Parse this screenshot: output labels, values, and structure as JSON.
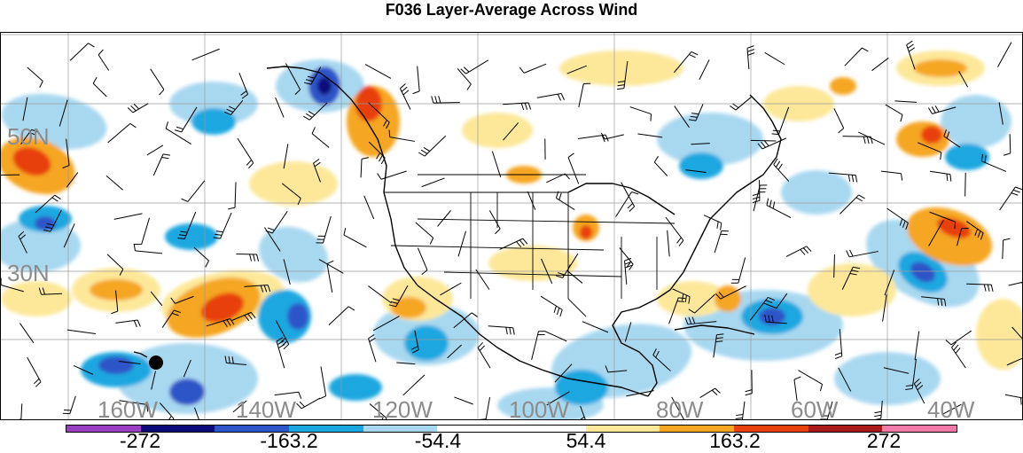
{
  "title": "F036 Layer-Average Across Wind",
  "map": {
    "latitude_labels": [
      "50N",
      "30N"
    ],
    "longitude_labels": [
      "160W",
      "140W",
      "120W",
      "100W",
      "80W",
      "60W",
      "40W"
    ],
    "marker": "filled-circle"
  },
  "colorbar": {
    "colors": [
      "#9a3fc4",
      "#0b0b7a",
      "#2d55c8",
      "#1aa7e0",
      "#a8d8f0",
      "#ffffff",
      "#ffffff",
      "#fde89a",
      "#f5a623",
      "#e8410d",
      "#a81a1a",
      "#f07aa8"
    ],
    "labels": [
      "-272",
      "-163.2",
      "-54.4",
      "54.4",
      "163.2",
      "272"
    ]
  },
  "palette": {
    "strong_negative": "#0b0b7a",
    "negative": "#2d55c8",
    "moderate_negative": "#1aa7e0",
    "weak_negative": "#a8d8f0",
    "weak_positive": "#fde89a",
    "moderate_positive": "#f5a623",
    "positive": "#e8410d",
    "strong_positive": "#a81a1a"
  }
}
